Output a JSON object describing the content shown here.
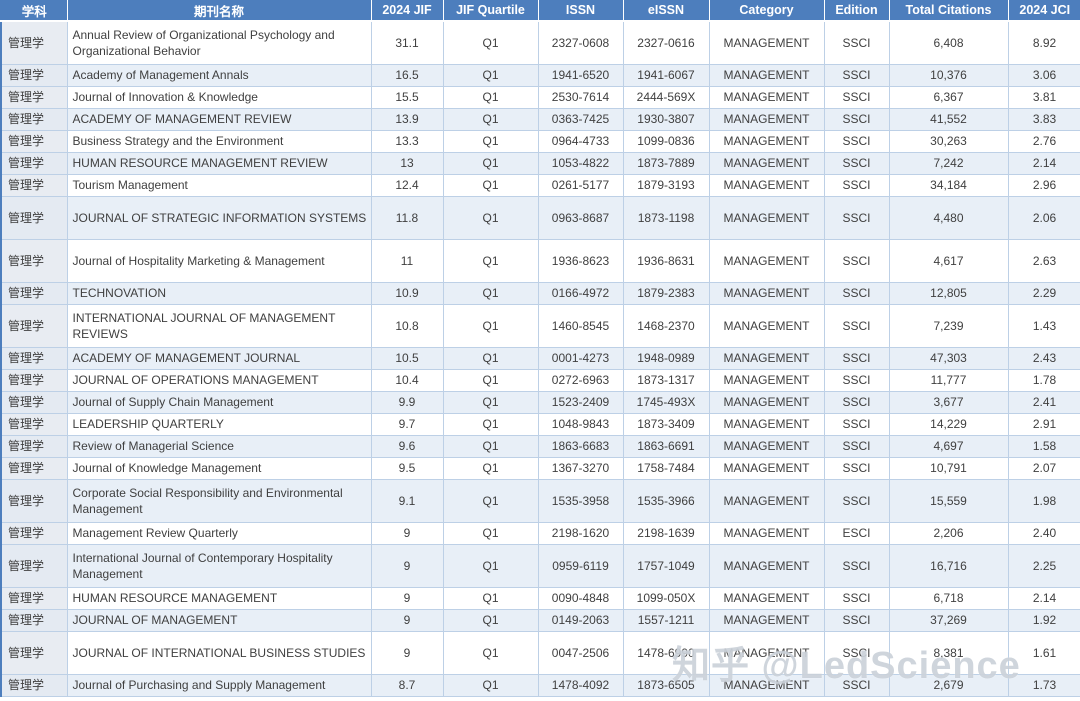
{
  "colors": {
    "header_bg": "#4d7ebd",
    "header_text": "#ffffff",
    "band_row": "#e8eff7",
    "first_column_bg": "#e8ecf2",
    "grid_line": "#bdd0e6",
    "body_text": "#3f3f3f"
  },
  "watermark": "知乎 @LedScience",
  "table": {
    "columns": [
      {
        "key": "subject",
        "label": "学科"
      },
      {
        "key": "journal",
        "label": "期刊名称"
      },
      {
        "key": "jif",
        "label": "2024 JIF"
      },
      {
        "key": "quartile",
        "label": "JIF Quartile"
      },
      {
        "key": "issn",
        "label": "ISSN"
      },
      {
        "key": "eissn",
        "label": "eISSN"
      },
      {
        "key": "category",
        "label": "Category"
      },
      {
        "key": "edition",
        "label": "Edition"
      },
      {
        "key": "citations",
        "label": "Total Citations"
      },
      {
        "key": "jci",
        "label": "2024 JCI"
      }
    ],
    "rows": [
      {
        "subject": "管理学",
        "journal": "Annual Review of Organizational Psychology and Organizational Behavior",
        "jif": "31.1",
        "quartile": "Q1",
        "issn": "2327-0608",
        "eissn": "2327-0616",
        "category": "MANAGEMENT",
        "edition": "SSCI",
        "citations": "6,408",
        "jci": "8.92"
      },
      {
        "subject": "管理学",
        "journal": "Academy of Management Annals",
        "jif": "16.5",
        "quartile": "Q1",
        "issn": "1941-6520",
        "eissn": "1941-6067",
        "category": "MANAGEMENT",
        "edition": "SSCI",
        "citations": "10,376",
        "jci": "3.06"
      },
      {
        "subject": "管理学",
        "journal": "Journal of Innovation & Knowledge",
        "jif": "15.5",
        "quartile": "Q1",
        "issn": "2530-7614",
        "eissn": "2444-569X",
        "category": "MANAGEMENT",
        "edition": "SSCI",
        "citations": "6,367",
        "jci": "3.81"
      },
      {
        "subject": "管理学",
        "journal": "ACADEMY OF MANAGEMENT REVIEW",
        "jif": "13.9",
        "quartile": "Q1",
        "issn": "0363-7425",
        "eissn": "1930-3807",
        "category": "MANAGEMENT",
        "edition": "SSCI",
        "citations": "41,552",
        "jci": "3.83"
      },
      {
        "subject": "管理学",
        "journal": "Business Strategy and the Environment",
        "jif": "13.3",
        "quartile": "Q1",
        "issn": "0964-4733",
        "eissn": "1099-0836",
        "category": "MANAGEMENT",
        "edition": "SSCI",
        "citations": "30,263",
        "jci": "2.76"
      },
      {
        "subject": "管理学",
        "journal": "HUMAN RESOURCE MANAGEMENT REVIEW",
        "jif": "13",
        "quartile": "Q1",
        "issn": "1053-4822",
        "eissn": "1873-7889",
        "category": "MANAGEMENT",
        "edition": "SSCI",
        "citations": "7,242",
        "jci": "2.14"
      },
      {
        "subject": "管理学",
        "journal": "Tourism Management",
        "jif": "12.4",
        "quartile": "Q1",
        "issn": "0261-5177",
        "eissn": "1879-3193",
        "category": "MANAGEMENT",
        "edition": "SSCI",
        "citations": "34,184",
        "jci": "2.96"
      },
      {
        "subject": "管理学",
        "journal": "JOURNAL OF STRATEGIC INFORMATION SYSTEMS",
        "jif": "11.8",
        "quartile": "Q1",
        "issn": "0963-8687",
        "eissn": "1873-1198",
        "category": "MANAGEMENT",
        "edition": "SSCI",
        "citations": "4,480",
        "jci": "2.06"
      },
      {
        "subject": "管理学",
        "journal": "Journal of Hospitality Marketing & Management",
        "jif": "11",
        "quartile": "Q1",
        "issn": "1936-8623",
        "eissn": "1936-8631",
        "category": "MANAGEMENT",
        "edition": "SSCI",
        "citations": "4,617",
        "jci": "2.63"
      },
      {
        "subject": "管理学",
        "journal": "TECHNOVATION",
        "jif": "10.9",
        "quartile": "Q1",
        "issn": "0166-4972",
        "eissn": "1879-2383",
        "category": "MANAGEMENT",
        "edition": "SSCI",
        "citations": "12,805",
        "jci": "2.29"
      },
      {
        "subject": "管理学",
        "journal": "INTERNATIONAL JOURNAL OF MANAGEMENT REVIEWS",
        "jif": "10.8",
        "quartile": "Q1",
        "issn": "1460-8545",
        "eissn": "1468-2370",
        "category": "MANAGEMENT",
        "edition": "SSCI",
        "citations": "7,239",
        "jci": "1.43"
      },
      {
        "subject": "管理学",
        "journal": "ACADEMY OF MANAGEMENT JOURNAL",
        "jif": "10.5",
        "quartile": "Q1",
        "issn": "0001-4273",
        "eissn": "1948-0989",
        "category": "MANAGEMENT",
        "edition": "SSCI",
        "citations": "47,303",
        "jci": "2.43"
      },
      {
        "subject": "管理学",
        "journal": "JOURNAL OF OPERATIONS MANAGEMENT",
        "jif": "10.4",
        "quartile": "Q1",
        "issn": "0272-6963",
        "eissn": "1873-1317",
        "category": "MANAGEMENT",
        "edition": "SSCI",
        "citations": "11,777",
        "jci": "1.78"
      },
      {
        "subject": "管理学",
        "journal": "Journal of Supply Chain Management",
        "jif": "9.9",
        "quartile": "Q1",
        "issn": "1523-2409",
        "eissn": "1745-493X",
        "category": "MANAGEMENT",
        "edition": "SSCI",
        "citations": "3,677",
        "jci": "2.41"
      },
      {
        "subject": "管理学",
        "journal": "LEADERSHIP QUARTERLY",
        "jif": "9.7",
        "quartile": "Q1",
        "issn": "1048-9843",
        "eissn": "1873-3409",
        "category": "MANAGEMENT",
        "edition": "SSCI",
        "citations": "14,229",
        "jci": "2.91"
      },
      {
        "subject": "管理学",
        "journal": "Review of Managerial Science",
        "jif": "9.6",
        "quartile": "Q1",
        "issn": "1863-6683",
        "eissn": "1863-6691",
        "category": "MANAGEMENT",
        "edition": "SSCI",
        "citations": "4,697",
        "jci": "1.58"
      },
      {
        "subject": "管理学",
        "journal": "Journal of Knowledge Management",
        "jif": "9.5",
        "quartile": "Q1",
        "issn": "1367-3270",
        "eissn": "1758-7484",
        "category": "MANAGEMENT",
        "edition": "SSCI",
        "citations": "10,791",
        "jci": "2.07"
      },
      {
        "subject": "管理学",
        "journal": "Corporate Social Responsibility and Environmental Management",
        "jif": "9.1",
        "quartile": "Q1",
        "issn": "1535-3958",
        "eissn": "1535-3966",
        "category": "MANAGEMENT",
        "edition": "SSCI",
        "citations": "15,559",
        "jci": "1.98"
      },
      {
        "subject": "管理学",
        "journal": "Management Review Quarterly",
        "jif": "9",
        "quartile": "Q1",
        "issn": "2198-1620",
        "eissn": "2198-1639",
        "category": "MANAGEMENT",
        "edition": "ESCI",
        "citations": "2,206",
        "jci": "2.40"
      },
      {
        "subject": "管理学",
        "journal": "International Journal of Contemporary Hospitality Management",
        "jif": "9",
        "quartile": "Q1",
        "issn": "0959-6119",
        "eissn": "1757-1049",
        "category": "MANAGEMENT",
        "edition": "SSCI",
        "citations": "16,716",
        "jci": "2.25"
      },
      {
        "subject": "管理学",
        "journal": "HUMAN RESOURCE MANAGEMENT",
        "jif": "9",
        "quartile": "Q1",
        "issn": "0090-4848",
        "eissn": "1099-050X",
        "category": "MANAGEMENT",
        "edition": "SSCI",
        "citations": "6,718",
        "jci": "2.14"
      },
      {
        "subject": "管理学",
        "journal": "JOURNAL OF MANAGEMENT",
        "jif": "9",
        "quartile": "Q1",
        "issn": "0149-2063",
        "eissn": "1557-1211",
        "category": "MANAGEMENT",
        "edition": "SSCI",
        "citations": "37,269",
        "jci": "1.92"
      },
      {
        "subject": "管理学",
        "journal": "JOURNAL OF INTERNATIONAL BUSINESS STUDIES",
        "jif": "9",
        "quartile": "Q1",
        "issn": "0047-2506",
        "eissn": "1478-6990",
        "category": "MANAGEMENT",
        "edition": "SSCI",
        "citations": "8,381",
        "jci": "1.61"
      },
      {
        "subject": "管理学",
        "journal": "Journal of Purchasing and Supply Management",
        "jif": "8.7",
        "quartile": "Q1",
        "issn": "1478-4092",
        "eissn": "1873-6505",
        "category": "MANAGEMENT",
        "edition": "SSCI",
        "citations": "2,679",
        "jci": "1.73"
      }
    ]
  }
}
